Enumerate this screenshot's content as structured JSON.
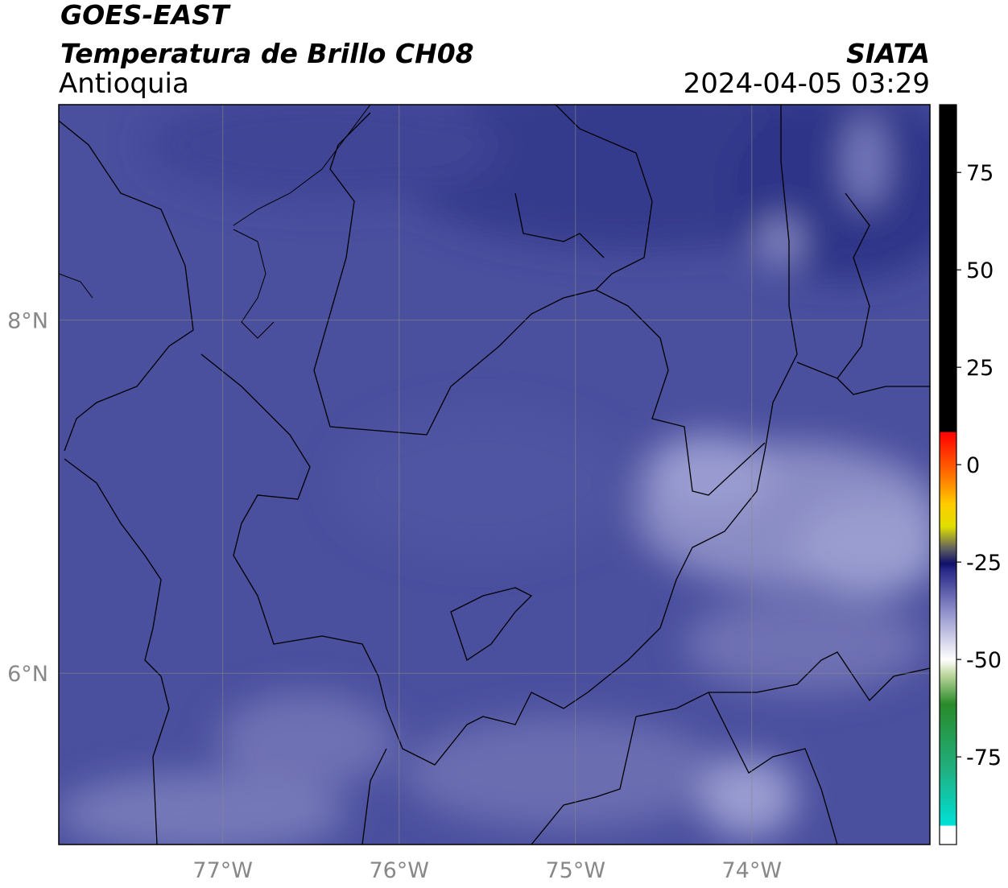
{
  "header": {
    "title": "GOES-EAST",
    "subtitle": "Temperatura de Brillo CH08",
    "region": "Antioquia",
    "source": "SIATA",
    "datetime": "2024-04-05 03:29"
  },
  "map": {
    "xlim": [
      -77.93,
      -72.99
    ],
    "ylim": [
      5.03,
      9.22
    ],
    "xticks": [
      {
        "value": -77,
        "label": "77°W"
      },
      {
        "value": -76,
        "label": "76°W"
      },
      {
        "value": -75,
        "label": "75°W"
      },
      {
        "value": -74,
        "label": "74°W"
      }
    ],
    "yticks": [
      {
        "value": 8,
        "label": "8°N"
      },
      {
        "value": 6,
        "label": "6°N"
      }
    ]
  },
  "colorbar": {
    "lim": [
      -97.5,
      92.4
    ],
    "ticks": [
      75,
      50,
      25,
      0,
      -25,
      -50,
      -75
    ]
  }
}
